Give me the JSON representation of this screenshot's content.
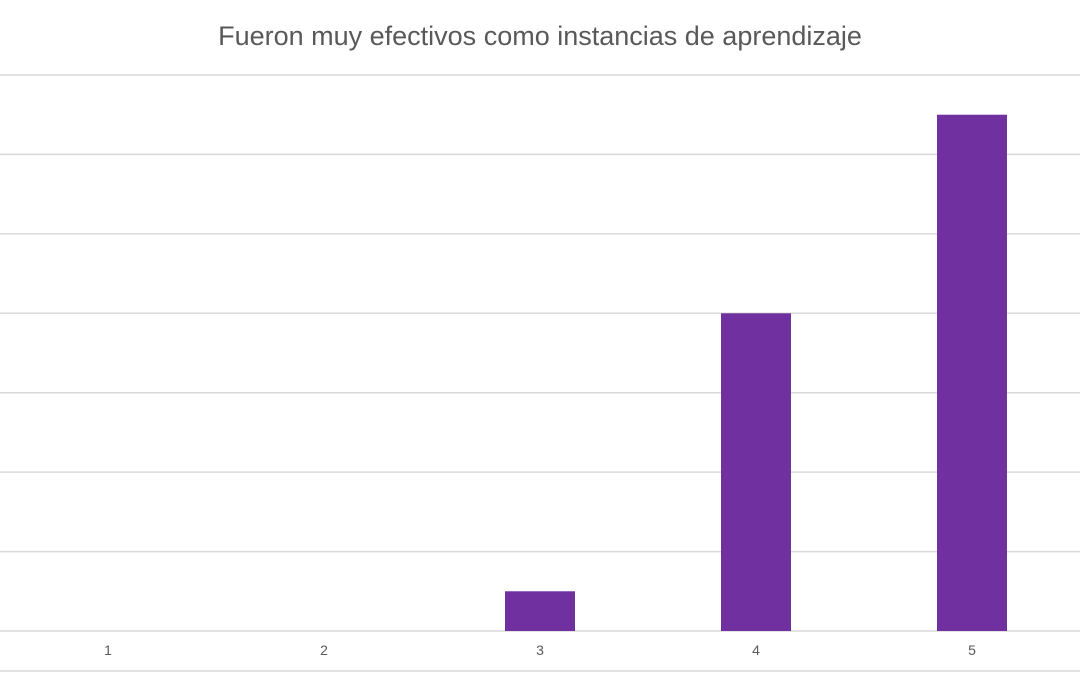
{
  "chart_data": {
    "type": "bar",
    "title": "Fueron muy efectivos como instancias de aprendizaje",
    "xlabel": "",
    "ylabel": "",
    "categories": [
      "1",
      "2",
      "3",
      "4",
      "5"
    ],
    "values": [
      0,
      0,
      1,
      8,
      13
    ],
    "ylim": [
      0,
      14
    ],
    "gridlines": [
      0,
      2,
      4,
      6,
      8,
      10,
      12,
      14
    ],
    "grid": true,
    "legend": "none",
    "bar_color": "#7030a0"
  }
}
